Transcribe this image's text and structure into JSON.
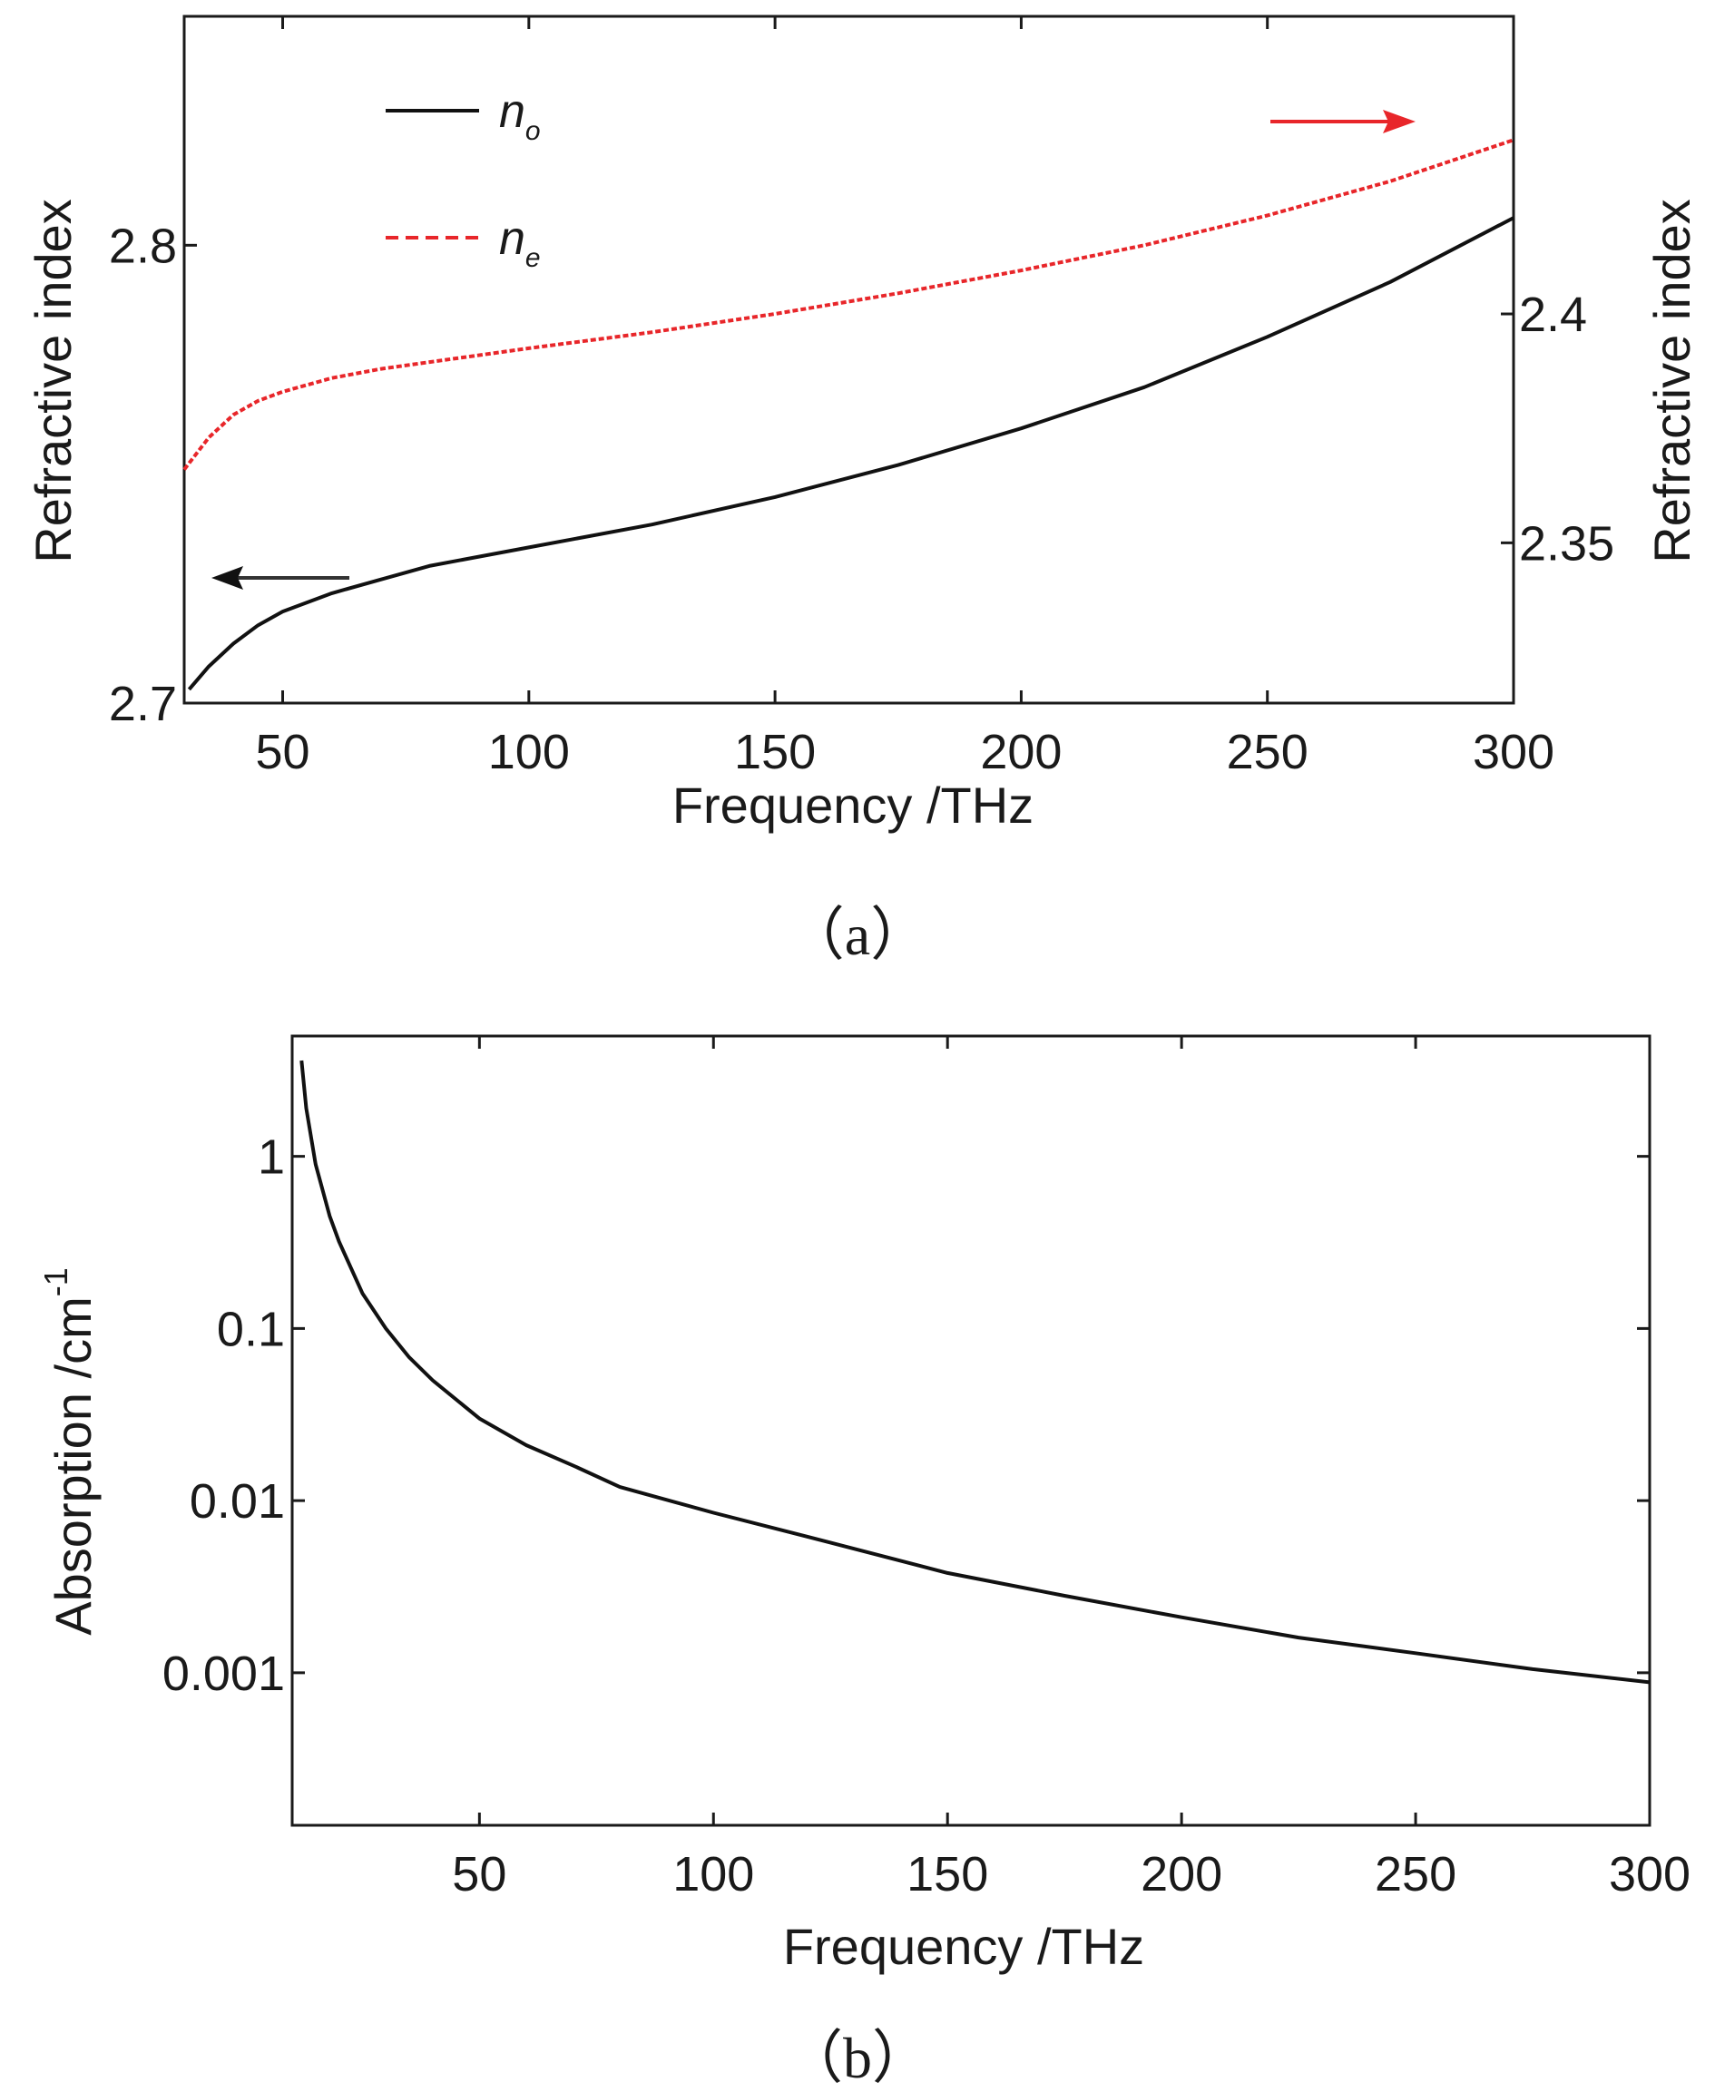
{
  "chart_data": [
    {
      "type": "line",
      "id": "a",
      "caption": "（a）",
      "xlabel": "Frequency /THz",
      "xlim": [
        30,
        300
      ],
      "xticks": [
        50,
        100,
        150,
        200,
        250,
        300
      ],
      "ylabel_left": "Refractive index",
      "ylim_left": [
        2.7,
        2.85
      ],
      "yticks_left": [
        "2.7",
        "2.8"
      ],
      "ylabel_right": "Refractive index",
      "ylim_right": [
        2.315,
        2.465
      ],
      "yticks_right": [
        "2.35",
        "2.4"
      ],
      "legend": [
        {
          "label": "n",
          "sub": "o",
          "color": "#111111",
          "style": "solid"
        },
        {
          "label": "n",
          "sub": "e",
          "color": "#e8262a",
          "style": "dashed"
        }
      ],
      "series": [
        {
          "name": "n_o",
          "axis": "left",
          "color": "#111111",
          "style": "solid",
          "x": [
            31,
            35,
            40,
            45,
            50,
            60,
            70,
            80,
            100,
            125,
            150,
            175,
            200,
            225,
            250,
            275,
            300
          ],
          "y": [
            2.703,
            2.708,
            2.713,
            2.717,
            2.72,
            2.724,
            2.727,
            2.73,
            2.734,
            2.739,
            2.745,
            2.752,
            2.76,
            2.769,
            2.78,
            2.792,
            2.806
          ]
        },
        {
          "name": "n_e",
          "axis": "right",
          "color": "#e8262a",
          "style": "dashed",
          "x": [
            30,
            35,
            40,
            45,
            50,
            60,
            70,
            80,
            100,
            125,
            150,
            175,
            200,
            225,
            250,
            275,
            300
          ],
          "y": [
            2.366,
            2.373,
            2.378,
            2.381,
            2.383,
            2.386,
            2.388,
            2.3895,
            2.3925,
            2.396,
            2.4,
            2.4045,
            2.4095,
            2.415,
            2.4215,
            2.429,
            2.438
          ]
        }
      ],
      "annotations": [
        {
          "type": "arrow",
          "direction": "left",
          "color": "#111111",
          "points_to": "left-axis"
        },
        {
          "type": "arrow",
          "direction": "right",
          "color": "#e8262a",
          "points_to": "right-axis"
        }
      ]
    },
    {
      "type": "line",
      "id": "b",
      "caption": "（b）",
      "xlabel": "Frequency /THz",
      "xlim": [
        10,
        300
      ],
      "xticks": [
        50,
        100,
        150,
        200,
        250,
        300
      ],
      "ylabel": "Absorption /cm",
      "ylabel_sup": "-1",
      "yscale": "log",
      "ylim": [
        0.00013,
        5
      ],
      "yticks": [
        0.001,
        0.01,
        0.1,
        1
      ],
      "ytick_labels": [
        "0.001",
        "0.01",
        "0.1",
        "1"
      ],
      "series": [
        {
          "name": "absorption",
          "color": "#111111",
          "style": "solid",
          "x": [
            12,
            13,
            15,
            18,
            20,
            25,
            30,
            35,
            40,
            50,
            60,
            70,
            80,
            100,
            125,
            150,
            175,
            200,
            225,
            250,
            275,
            300
          ],
          "y": [
            3.6,
            1.9,
            0.9,
            0.45,
            0.32,
            0.16,
            0.1,
            0.068,
            0.05,
            0.03,
            0.021,
            0.016,
            0.012,
            0.0085,
            0.0057,
            0.0038,
            0.0028,
            0.0021,
            0.0016,
            0.0013,
            0.00105,
            0.00088
          ]
        }
      ]
    }
  ]
}
